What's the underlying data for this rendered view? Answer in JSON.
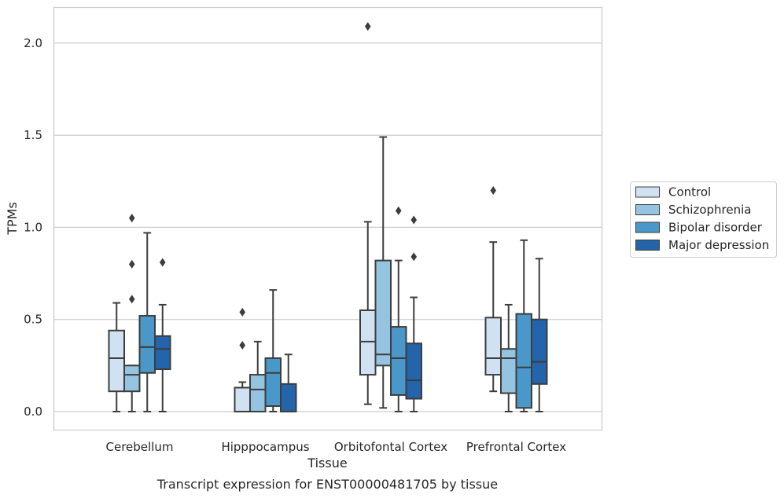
{
  "chart_data": {
    "type": "box",
    "xlabel": "Tissue",
    "ylabel": "TPMs",
    "caption": "Transcript expression for ENST00000481705 by tissue",
    "ylim": [
      -0.1,
      2.2
    ],
    "yticks": [
      0.0,
      0.5,
      1.0,
      1.5,
      2.0
    ],
    "ytick_labels": [
      "0.0",
      "0.5",
      "1.0",
      "1.5",
      "2.0"
    ],
    "grid": "horizontal",
    "legend_position": "right-outside",
    "categories": [
      "Cerebellum",
      "Hipppocampus",
      "Orbitofontal Cortex",
      "Prefrontal Cortex"
    ],
    "series": [
      {
        "name": "Control",
        "color": "#d0e1f2",
        "boxes": [
          {
            "whislo": 0.0,
            "q1": 0.11,
            "med": 0.29,
            "q3": 0.44,
            "whishi": 0.59,
            "fliers": []
          },
          {
            "whislo": 0.0,
            "q1": 0.0,
            "med": 0.0,
            "q3": 0.13,
            "whishi": 0.16,
            "fliers": [
              0.36,
              0.54
            ]
          },
          {
            "whislo": 0.04,
            "q1": 0.2,
            "med": 0.38,
            "q3": 0.55,
            "whishi": 1.03,
            "fliers": [
              2.09
            ]
          },
          {
            "whislo": 0.11,
            "q1": 0.2,
            "med": 0.29,
            "q3": 0.51,
            "whishi": 0.92,
            "fliers": [
              1.2
            ]
          }
        ]
      },
      {
        "name": "Schizophrenia",
        "color": "#94c4df",
        "boxes": [
          {
            "whislo": 0.0,
            "q1": 0.11,
            "med": 0.2,
            "q3": 0.25,
            "whishi": 0.25,
            "fliers": [
              0.61,
              0.8,
              1.05
            ]
          },
          {
            "whislo": 0.0,
            "q1": 0.0,
            "med": 0.12,
            "q3": 0.2,
            "whishi": 0.38,
            "fliers": []
          },
          {
            "whislo": 0.02,
            "q1": 0.25,
            "med": 0.31,
            "q3": 0.82,
            "whishi": 1.49,
            "fliers": []
          },
          {
            "whislo": 0.0,
            "q1": 0.1,
            "med": 0.29,
            "q3": 0.34,
            "whishi": 0.58,
            "fliers": []
          }
        ]
      },
      {
        "name": "Bipolar disorder",
        "color": "#4a98c9",
        "boxes": [
          {
            "whislo": 0.0,
            "q1": 0.21,
            "med": 0.35,
            "q3": 0.52,
            "whishi": 0.97,
            "fliers": []
          },
          {
            "whislo": 0.0,
            "q1": 0.03,
            "med": 0.21,
            "q3": 0.29,
            "whishi": 0.66,
            "fliers": []
          },
          {
            "whislo": 0.0,
            "q1": 0.09,
            "med": 0.29,
            "q3": 0.46,
            "whishi": 0.82,
            "fliers": [
              1.09
            ]
          },
          {
            "whislo": 0.0,
            "q1": 0.02,
            "med": 0.24,
            "q3": 0.53,
            "whishi": 0.93,
            "fliers": []
          }
        ]
      },
      {
        "name": "Major depression",
        "color": "#2364aa",
        "boxes": [
          {
            "whislo": 0.0,
            "q1": 0.23,
            "med": 0.34,
            "q3": 0.41,
            "whishi": 0.58,
            "fliers": [
              0.81
            ]
          },
          {
            "whislo": 0.0,
            "q1": 0.0,
            "med": 0.0,
            "q3": 0.15,
            "whishi": 0.31,
            "fliers": []
          },
          {
            "whislo": 0.0,
            "q1": 0.07,
            "med": 0.17,
            "q3": 0.37,
            "whishi": 0.62,
            "fliers": [
              0.84,
              1.04
            ]
          },
          {
            "whislo": 0.0,
            "q1": 0.15,
            "med": 0.27,
            "q3": 0.5,
            "whishi": 0.83,
            "fliers": []
          }
        ]
      }
    ]
  }
}
